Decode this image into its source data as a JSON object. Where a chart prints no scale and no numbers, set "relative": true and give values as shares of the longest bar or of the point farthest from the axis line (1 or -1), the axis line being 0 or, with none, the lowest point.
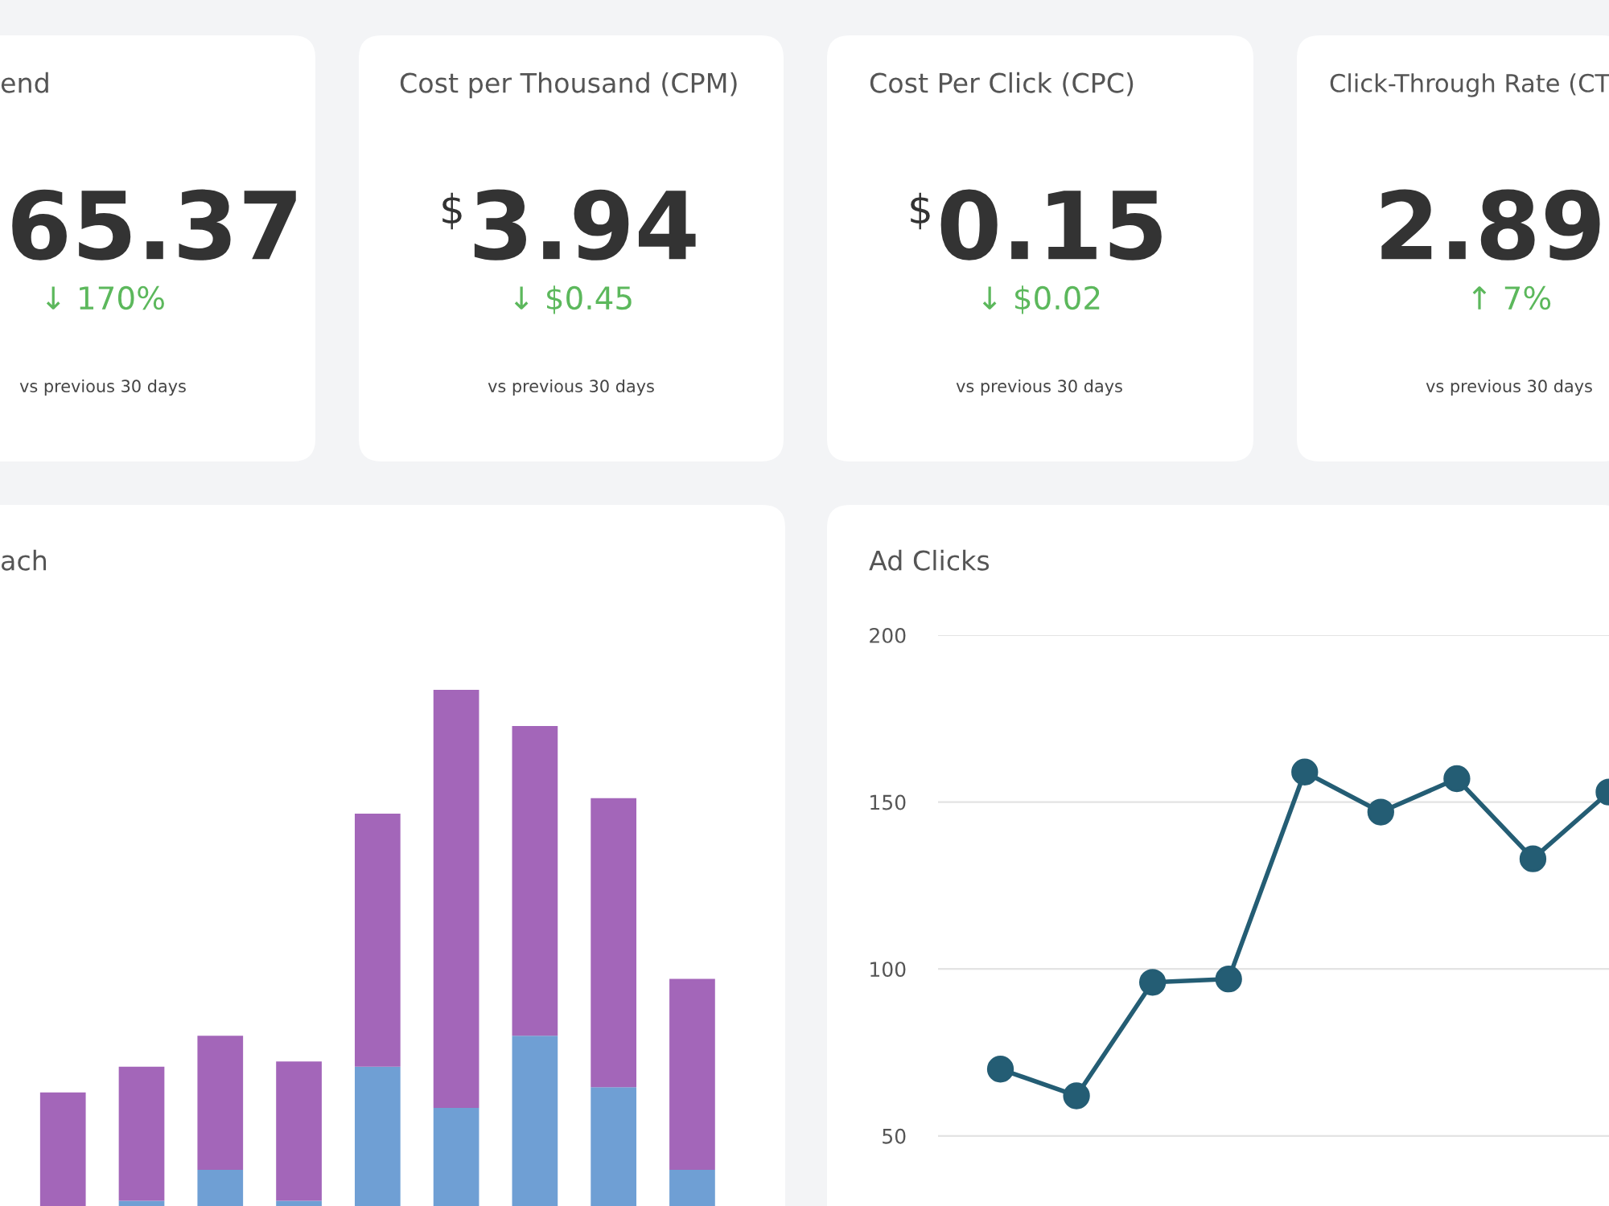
{
  "chart_data": [
    {
      "type": "other",
      "title": "end",
      "annotations": [
        "65.37",
        "↓ 170%",
        "vs previous 30 days"
      ]
    },
    {
      "type": "other",
      "title": "Cost per Thousand (CPM)",
      "annotations": [
        "$",
        "3.94",
        "↓ $0.45",
        "vs previous 30 days"
      ]
    },
    {
      "type": "other",
      "title": "Cost Per Click (CPC)",
      "annotations": [
        "$",
        "0.15",
        "↓ $0.02",
        "vs previous 30 days"
      ]
    },
    {
      "type": "other",
      "title": "Click-Through Rate (CT",
      "annotations": [
        "2.89",
        "↑ 7%",
        "vs previous 30 days"
      ]
    },
    {
      "type": "bar",
      "title": "ach",
      "stacked": true,
      "relative": true,
      "categories": [
        null,
        null,
        null,
        null,
        null,
        null,
        null,
        null,
        null
      ],
      "series": [
        {
          "color": "#6f9fd4",
          "values": [
            0,
            0.01,
            0.07,
            0.01,
            0.27,
            0.19,
            0.33,
            0.23,
            0.07
          ]
        },
        {
          "color": "#a366b9",
          "values": [
            0.22,
            0.26,
            0.26,
            0.27,
            0.49,
            0.81,
            0.6,
            0.56,
            0.37
          ]
        }
      ]
    },
    {
      "type": "line",
      "title": "Ad Clicks",
      "categories": [
        null,
        null,
        null,
        null,
        null,
        null,
        null,
        null,
        null
      ],
      "ylim": [
        29,
        200
      ],
      "yticks": [
        50,
        100,
        150,
        200
      ],
      "grid": "y",
      "marker": "circle",
      "series": [
        {
          "color": "#245d74",
          "values": [
            70,
            62,
            96,
            97,
            159,
            147,
            157,
            133,
            153
          ]
        }
      ]
    }
  ]
}
